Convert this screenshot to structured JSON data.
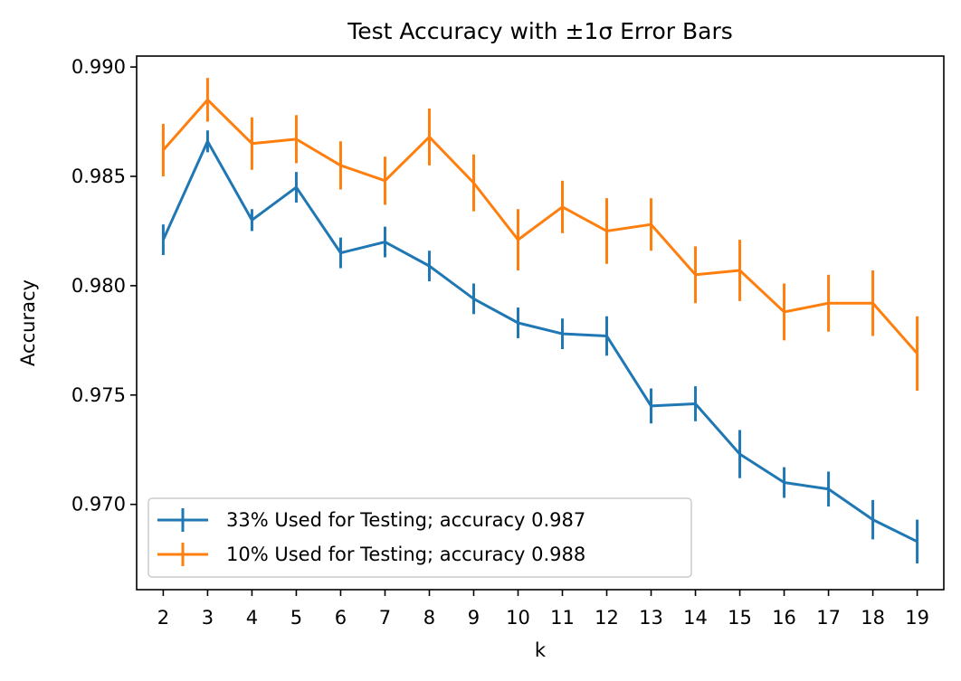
{
  "chart_data": {
    "type": "line",
    "title": "Test Accuracy with ±1σ Error Bars",
    "xlabel": "k",
    "ylabel": "Accuracy",
    "x": [
      2,
      3,
      4,
      5,
      6,
      7,
      8,
      9,
      10,
      11,
      12,
      13,
      14,
      15,
      16,
      17,
      18,
      19
    ],
    "xlim": [
      1.4,
      19.6
    ],
    "ylim": [
      0.9661,
      0.9905
    ],
    "yticks": [
      0.97,
      0.975,
      0.98,
      0.985,
      0.99
    ],
    "ytick_labels": [
      "0.970",
      "0.975",
      "0.980",
      "0.985",
      "0.990"
    ],
    "grid": false,
    "legend_position": "lower-left",
    "series": [
      {
        "name": "33% Used for Testing; accuracy 0.987",
        "color": "#1f77b4",
        "values": [
          0.9821,
          0.9866,
          0.983,
          0.9845,
          0.9815,
          0.982,
          0.9809,
          0.9794,
          0.9783,
          0.9778,
          0.9777,
          0.9745,
          0.9746,
          0.9723,
          0.971,
          0.9707,
          0.9693,
          0.9683
        ],
        "errors": [
          0.0007,
          0.0005,
          0.0005,
          0.0007,
          0.0007,
          0.0007,
          0.0007,
          0.0007,
          0.0007,
          0.0007,
          0.0009,
          0.0008,
          0.0008,
          0.0011,
          0.0007,
          0.0008,
          0.0009,
          0.001
        ]
      },
      {
        "name": "10% Used for Testing; accuracy 0.988",
        "color": "#ff7f0e",
        "values": [
          0.9862,
          0.9885,
          0.9865,
          0.9867,
          0.9855,
          0.9848,
          0.9868,
          0.9847,
          0.9821,
          0.9836,
          0.9825,
          0.9828,
          0.9805,
          0.9807,
          0.9788,
          0.9792,
          0.9792,
          0.9769
        ],
        "errors": [
          0.0012,
          0.001,
          0.0012,
          0.0011,
          0.0011,
          0.0011,
          0.0013,
          0.0013,
          0.0014,
          0.0012,
          0.0015,
          0.0012,
          0.0013,
          0.0014,
          0.0013,
          0.0013,
          0.0015,
          0.0017
        ]
      }
    ]
  }
}
